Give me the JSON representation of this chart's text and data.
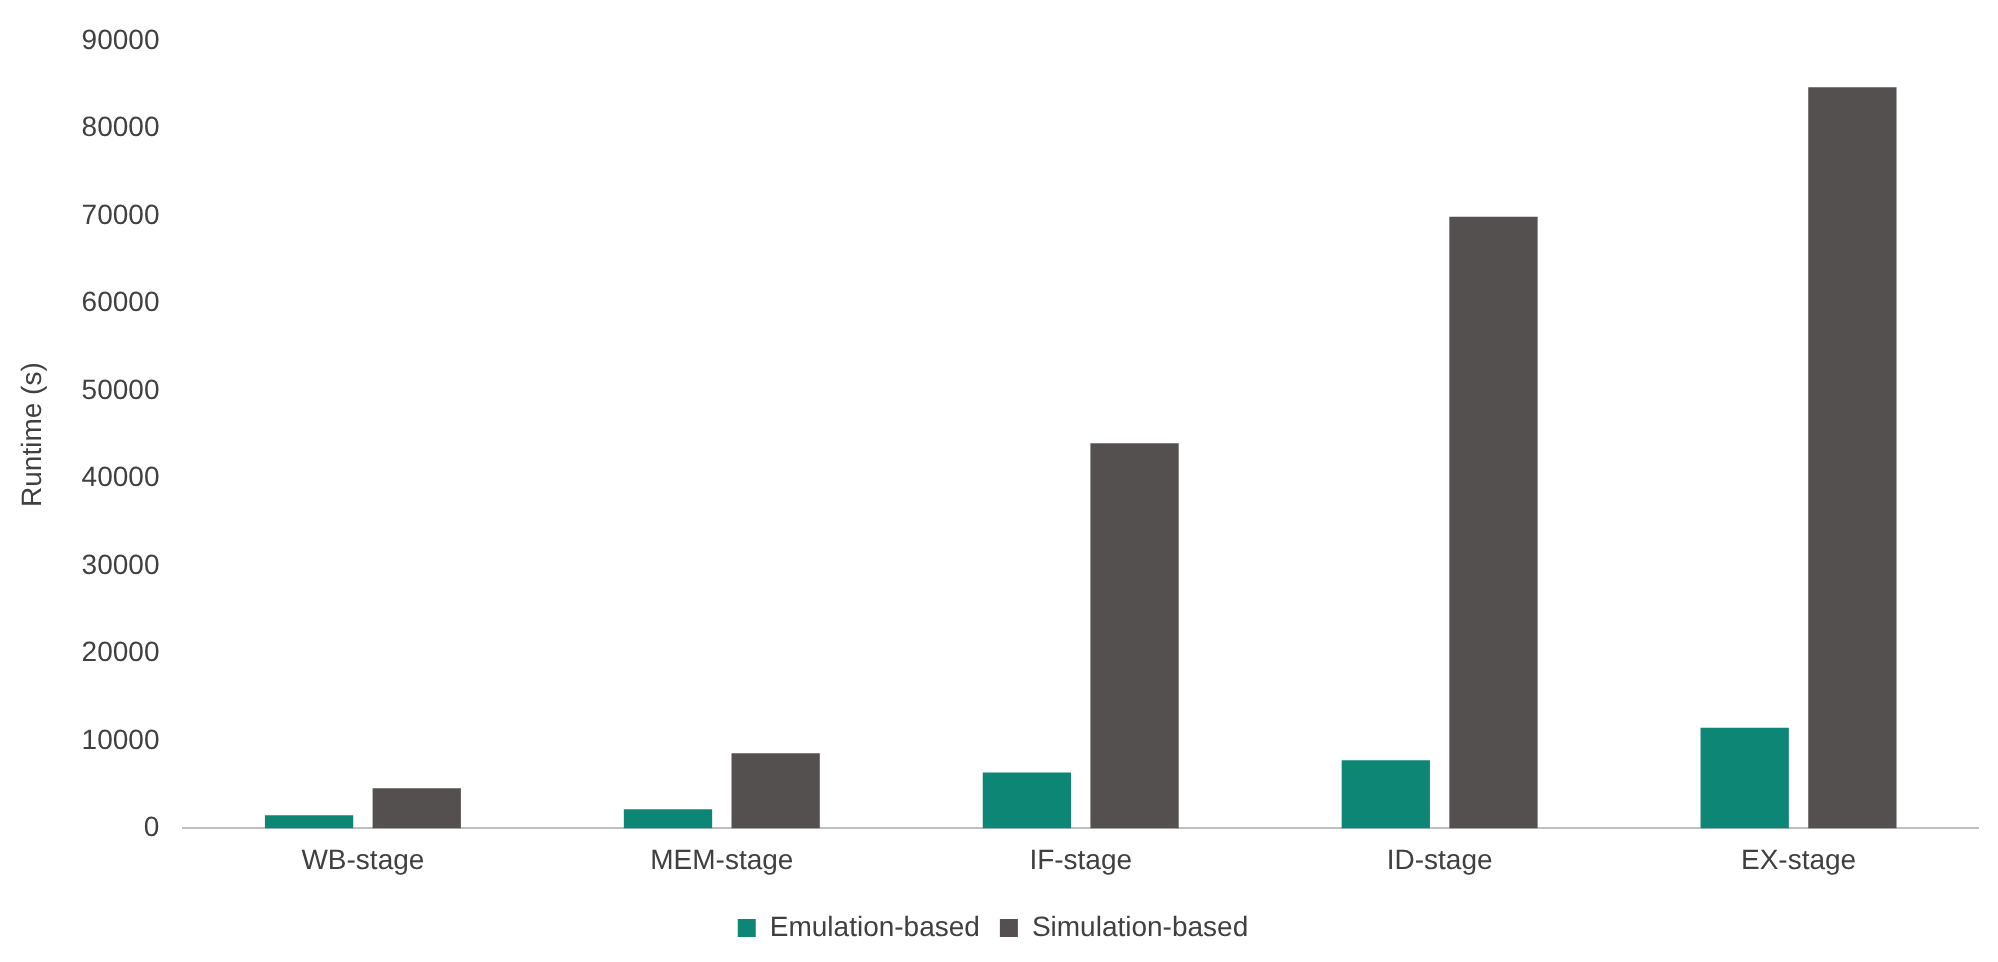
{
  "chart_data": {
    "type": "bar",
    "ylabel": "Runtime (s)",
    "categories": [
      "WB-stage",
      "MEM-stage",
      "IF-stage",
      "ID-stage",
      "EX-stage"
    ],
    "series": [
      {
        "name": "Emulation-based",
        "color": "#0e8676",
        "values": [
          1500,
          2200,
          6400,
          7800,
          11500
        ]
      },
      {
        "name": "Simulation-based",
        "color": "#545050",
        "values": [
          4600,
          8600,
          44000,
          69900,
          84700
        ]
      }
    ],
    "ylim": [
      0,
      90000
    ],
    "yticks": [
      0,
      10000,
      20000,
      30000,
      40000,
      50000,
      60000,
      70000,
      80000,
      90000
    ],
    "grid": false,
    "legend": "bottom"
  }
}
